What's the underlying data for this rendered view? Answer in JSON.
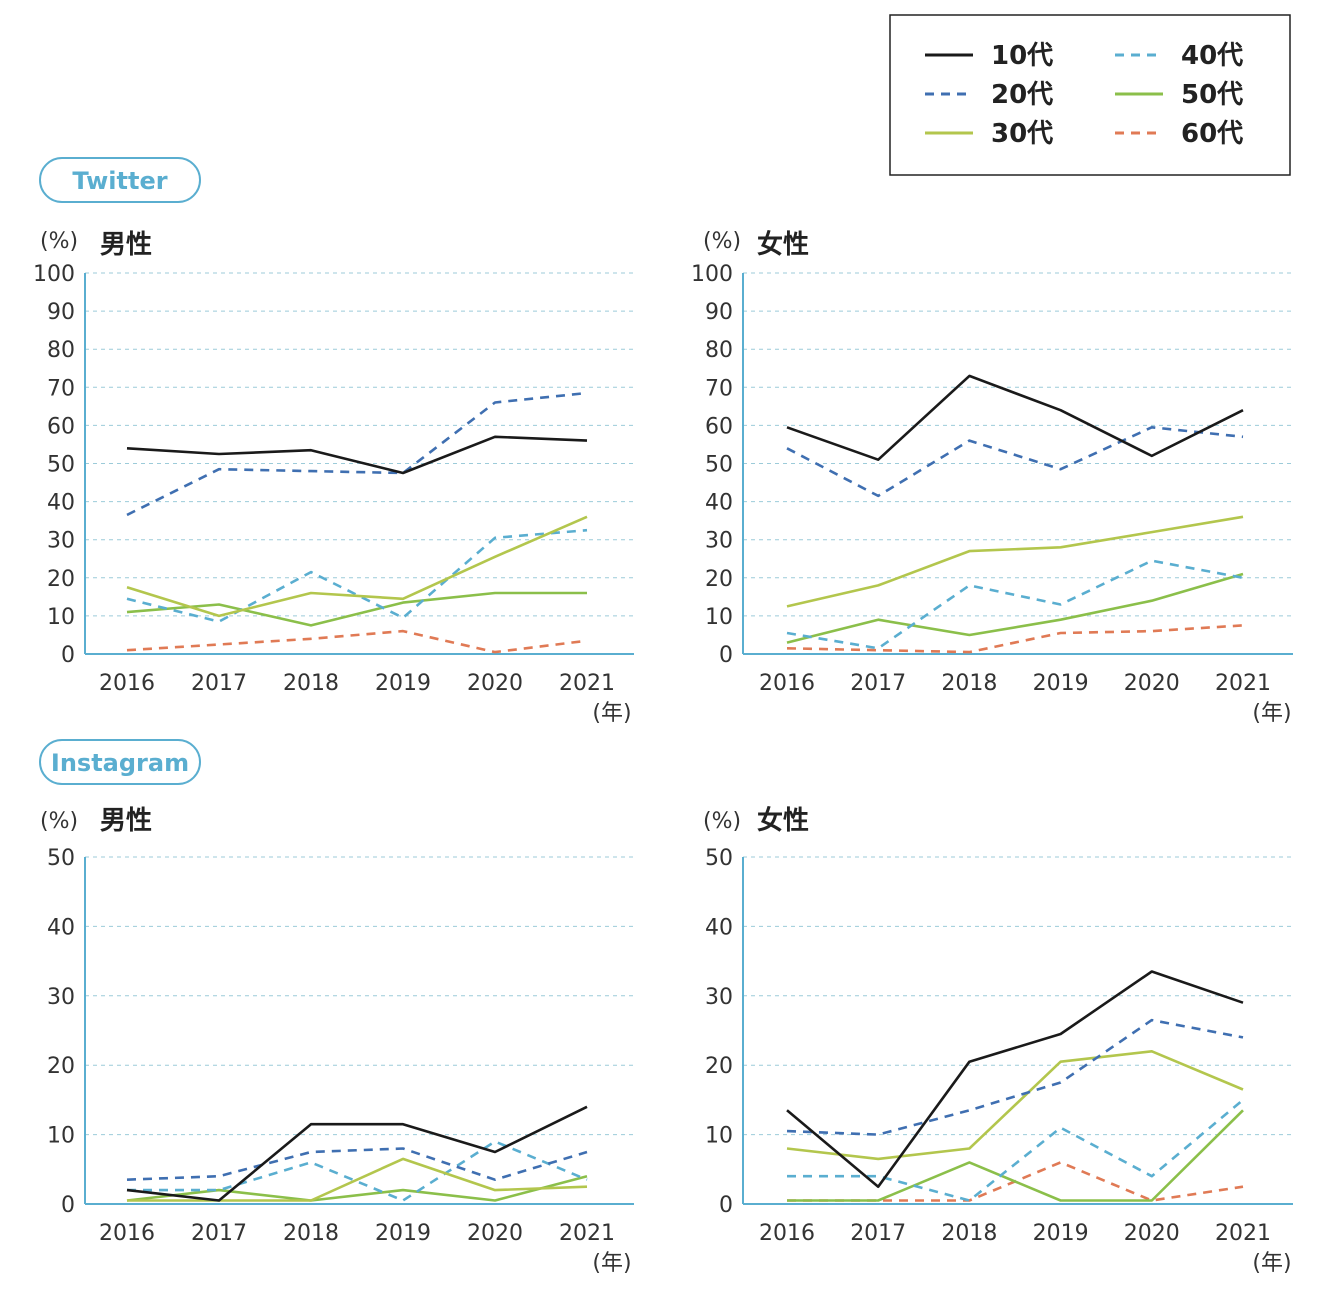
{
  "legend": {
    "entries": [
      {
        "key": "s10",
        "label": "10代",
        "color": "#1a1a1a",
        "dash": "solid"
      },
      {
        "key": "s20",
        "label": "20代",
        "color": "#3f6fb1",
        "dash": "dashed"
      },
      {
        "key": "s30",
        "label": "30代",
        "color": "#b3c64d",
        "dash": "solid"
      },
      {
        "key": "s40",
        "label": "40代",
        "color": "#5aaed0",
        "dash": "dashed"
      },
      {
        "key": "s50",
        "label": "50代",
        "color": "#8bbf4a",
        "dash": "solid"
      },
      {
        "key": "s60",
        "label": "60代",
        "color": "#e07a55",
        "dash": "dashed"
      }
    ]
  },
  "sections": {
    "twitter": {
      "label": "Twitter"
    },
    "instagram": {
      "label": "Instagram"
    }
  },
  "chart_data": [
    {
      "id": "twitter-male",
      "type": "line",
      "section": "Twitter",
      "unit_label": "(%)",
      "title": "男性",
      "x_unit_label": "(年)",
      "x": [
        2016,
        2017,
        2018,
        2019,
        2020,
        2021
      ],
      "ylim": [
        0,
        100
      ],
      "yticks": [
        0,
        10,
        20,
        30,
        40,
        50,
        60,
        70,
        80,
        90,
        100
      ],
      "grid": true,
      "series": [
        {
          "key": "s10",
          "name": "10代",
          "values": [
            54,
            52.5,
            53.5,
            47.5,
            57,
            56
          ]
        },
        {
          "key": "s20",
          "name": "20代",
          "values": [
            36.5,
            48.5,
            48,
            47.5,
            66,
            68.5
          ]
        },
        {
          "key": "s30",
          "name": "30代",
          "values": [
            17.5,
            10,
            16,
            14.5,
            25.5,
            36
          ]
        },
        {
          "key": "s40",
          "name": "40代",
          "values": [
            14.5,
            8.5,
            21.5,
            9.5,
            30.5,
            32.5
          ]
        },
        {
          "key": "s50",
          "name": "50代",
          "values": [
            11,
            13,
            7.5,
            13.5,
            16,
            16
          ]
        },
        {
          "key": "s60",
          "name": "60代",
          "values": [
            1,
            2.5,
            4,
            6,
            0.5,
            3.5
          ]
        }
      ]
    },
    {
      "id": "twitter-female",
      "type": "line",
      "section": "Twitter",
      "unit_label": "(%)",
      "title": "女性",
      "x_unit_label": "(年)",
      "x": [
        2016,
        2017,
        2018,
        2019,
        2020,
        2021
      ],
      "ylim": [
        0,
        100
      ],
      "yticks": [
        0,
        10,
        20,
        30,
        40,
        50,
        60,
        70,
        80,
        90,
        100
      ],
      "grid": true,
      "series": [
        {
          "key": "s10",
          "name": "10代",
          "values": [
            59.5,
            51,
            73,
            64,
            52,
            64
          ]
        },
        {
          "key": "s20",
          "name": "20代",
          "values": [
            54,
            41.5,
            56,
            48.5,
            59.5,
            57
          ]
        },
        {
          "key": "s30",
          "name": "30代",
          "values": [
            12.5,
            18,
            27,
            28,
            32,
            36
          ]
        },
        {
          "key": "s40",
          "name": "40代",
          "values": [
            5.5,
            1.5,
            18,
            13,
            24.5,
            20
          ]
        },
        {
          "key": "s50",
          "name": "50代",
          "values": [
            3,
            9,
            5,
            9,
            14,
            21
          ]
        },
        {
          "key": "s60",
          "name": "60代",
          "values": [
            1.5,
            1,
            0.5,
            5.5,
            6,
            7.5
          ]
        }
      ]
    },
    {
      "id": "instagram-male",
      "type": "line",
      "section": "Instagram",
      "unit_label": "(%)",
      "title": "男性",
      "x_unit_label": "(年)",
      "x": [
        2016,
        2017,
        2018,
        2019,
        2020,
        2021
      ],
      "ylim": [
        0,
        50
      ],
      "yticks": [
        0,
        10,
        20,
        30,
        40,
        50
      ],
      "grid": true,
      "series": [
        {
          "key": "s10",
          "name": "10代",
          "values": [
            2,
            0.5,
            11.5,
            11.5,
            7.5,
            14
          ]
        },
        {
          "key": "s20",
          "name": "20代",
          "values": [
            3.5,
            4,
            7.5,
            8,
            3.5,
            7.5
          ]
        },
        {
          "key": "s30",
          "name": "30代",
          "values": [
            0.5,
            0.5,
            0.5,
            6.5,
            2,
            2.5
          ]
        },
        {
          "key": "s40",
          "name": "40代",
          "values": [
            2,
            2,
            6,
            0.5,
            9,
            3.5
          ]
        },
        {
          "key": "s50",
          "name": "50代",
          "values": [
            0.5,
            2,
            0.5,
            2,
            0.5,
            4
          ]
        }
      ]
    },
    {
      "id": "instagram-female",
      "type": "line",
      "section": "Instagram",
      "unit_label": "(%)",
      "title": "女性",
      "x_unit_label": "(年)",
      "x": [
        2016,
        2017,
        2018,
        2019,
        2020,
        2021
      ],
      "ylim": [
        0,
        50
      ],
      "yticks": [
        0,
        10,
        20,
        30,
        40,
        50
      ],
      "grid": true,
      "series": [
        {
          "key": "s10",
          "name": "10代",
          "values": [
            13.5,
            2.5,
            20.5,
            24.5,
            33.5,
            29
          ]
        },
        {
          "key": "s20",
          "name": "20代",
          "values": [
            10.5,
            10,
            13.5,
            17.5,
            26.5,
            24
          ]
        },
        {
          "key": "s30",
          "name": "30代",
          "values": [
            8,
            6.5,
            8,
            20.5,
            22,
            16.5
          ]
        },
        {
          "key": "s40",
          "name": "40代",
          "values": [
            4,
            4,
            0.5,
            11,
            4,
            15
          ]
        },
        {
          "key": "s50",
          "name": "50代",
          "values": [
            0.5,
            0.5,
            6,
            0.5,
            0.5,
            13.5
          ]
        },
        {
          "key": "s60",
          "name": "60代",
          "values": [
            0.5,
            0.5,
            0.5,
            6,
            0.5,
            2.5
          ]
        }
      ]
    }
  ]
}
